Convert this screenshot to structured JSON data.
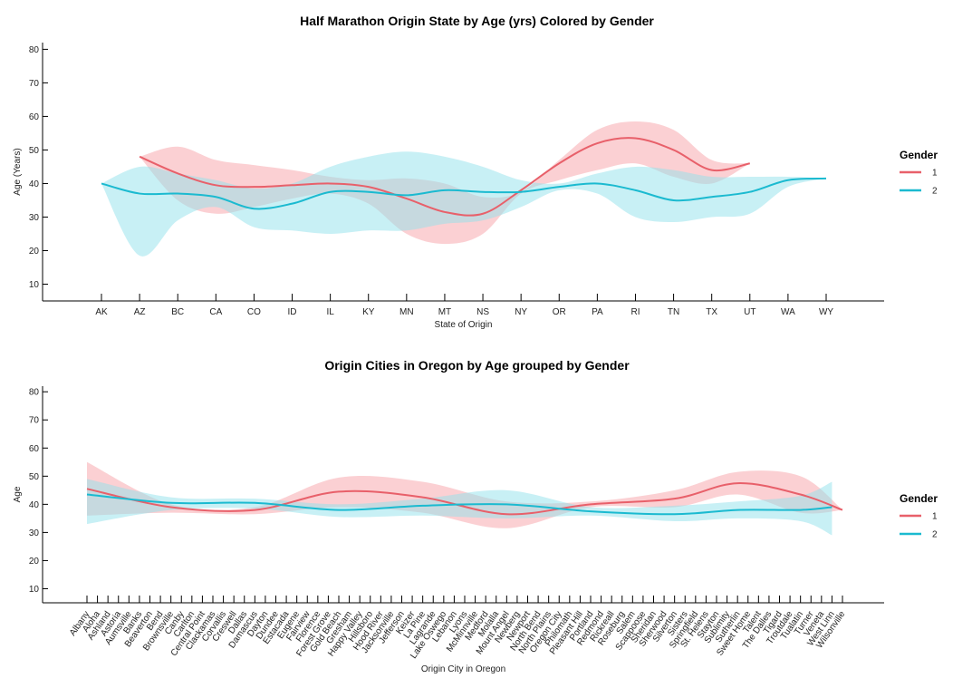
{
  "charts": [
    {
      "type": "line",
      "title": "Half Marathon Origin State by Age (yrs) Colored by Gender",
      "xlabel": "State of Origin",
      "ylabel": "Age (Years)",
      "ylim": [
        5,
        82
      ],
      "yticks": [
        10,
        20,
        30,
        40,
        50,
        60,
        70,
        80
      ],
      "categories": [
        "AK",
        "AZ",
        "BC",
        "CA",
        "CO",
        "ID",
        "IL",
        "KY",
        "MN",
        "MT",
        "NS",
        "NY",
        "OR",
        "PA",
        "RI",
        "TN",
        "TX",
        "UT",
        "WA",
        "WY"
      ],
      "legend": {
        "title": "Gender",
        "position": "right"
      },
      "series": [
        {
          "name": "1",
          "color": "#e8606a",
          "band_color": "#f7a1a8",
          "x_start": 1,
          "values": [
            48,
            43,
            39.5,
            39,
            39.5,
            40,
            39,
            35.5,
            31.5,
            31,
            38,
            46,
            52,
            53.5,
            50,
            44,
            46
          ],
          "upper": [
            48,
            51,
            47,
            45.5,
            44,
            42,
            41,
            41.5,
            40,
            36,
            37.5,
            47,
            56,
            58.5,
            56,
            47,
            46
          ],
          "lower": [
            48,
            35,
            31,
            33,
            35.5,
            37,
            34,
            25,
            22,
            25,
            37,
            41,
            44,
            46,
            42,
            40,
            46
          ]
        },
        {
          "name": "2",
          "color": "#1bbad0",
          "band_color": "#92e1ec",
          "x_start": 0,
          "values": [
            40,
            37,
            37,
            36,
            32.5,
            34,
            37.5,
            37.5,
            36.5,
            38,
            37.5,
            37.5,
            39,
            40,
            38,
            35,
            36,
            37.5,
            41,
            41.5
          ],
          "upper": [
            40,
            45,
            43,
            41,
            38.5,
            40,
            45,
            48,
            49.5,
            48,
            45,
            41,
            40,
            43,
            45,
            44,
            42,
            42,
            42,
            41.5
          ],
          "lower": [
            40,
            18.5,
            29,
            33,
            27,
            26,
            25,
            26,
            26,
            28,
            29,
            33,
            38,
            37,
            30,
            28.5,
            30,
            31,
            39,
            41.5
          ]
        }
      ]
    },
    {
      "type": "line",
      "title": "Origin Cities in Oregon by Age grouped by Gender",
      "xlabel": "Origin City in Oregon",
      "ylabel": "Age",
      "ylim": [
        5,
        82
      ],
      "yticks": [
        10,
        20,
        30,
        40,
        50,
        60,
        70,
        80
      ],
      "categories": [
        "Albany",
        "Aloha",
        "Ashland",
        "Astoria",
        "Aumsville",
        "Banks",
        "Beaverton",
        "Bend",
        "Brownsville",
        "Canby",
        "Carlton",
        "Central Point",
        "Clackamas",
        "Corvallis",
        "Creswell",
        "Dallas",
        "Damascus",
        "Dayton",
        "Dundee",
        "Estacada",
        "Eugene",
        "Fairview",
        "Florence",
        "Forest Grove",
        "Gold Beach",
        "Gresham",
        "Happy Valley",
        "Hillsboro",
        "Hood River",
        "Jacksonville",
        "Jefferson",
        "Keizer",
        "La Pine",
        "Lagrande",
        "Lake Oswego",
        "Lebanon",
        "Lyons",
        "McMinnville",
        "Medford",
        "Molalla",
        "Mount Angel",
        "Newberg",
        "Newport",
        "North Bend",
        "North Plains",
        "Oregon City",
        "Philomath",
        "Pleasant Hill",
        "Portland",
        "Redmond",
        "Rickreall",
        "Roseburg",
        "Salem",
        "Scappoose",
        "Sheridan",
        "Sherwood",
        "Silverton",
        "Sisters",
        "Springfield",
        "St. Helens",
        "Stayton",
        "Sublimity",
        "Sutherlin",
        "Sweet Home",
        "Talent",
        "The Dalles",
        "Tigard",
        "Troutdale",
        "Tualatin",
        "Turner",
        "Veneta",
        "West Linn",
        "Wilsonville"
      ],
      "legend": {
        "title": "Gender",
        "position": "right"
      },
      "series": [
        {
          "name": "1",
          "color": "#e8606a",
          "band_color": "#f7a1a8",
          "x_indices": [
            0,
            8,
            16,
            24,
            32,
            40,
            48,
            56,
            62,
            68,
            72
          ],
          "values": [
            45.5,
            39,
            38,
            44.5,
            42.5,
            36.5,
            40,
            42,
            47.5,
            43.5,
            38
          ],
          "upper": [
            55,
            40,
            39,
            49.5,
            48,
            41,
            41,
            45,
            51.5,
            50,
            38
          ],
          "lower": [
            36,
            37,
            36.5,
            39,
            37,
            31.5,
            39,
            39,
            43.5,
            37,
            38
          ]
        },
        {
          "name": "2",
          "color": "#1bbad0",
          "band_color": "#92e1ec",
          "x_indices": [
            0,
            8,
            16,
            24,
            32,
            40,
            48,
            56,
            62,
            68,
            71
          ],
          "values": [
            43.5,
            40.5,
            40.5,
            38,
            39.5,
            40,
            37.5,
            36.5,
            38,
            38,
            39
          ],
          "upper": [
            49,
            42.5,
            42,
            40,
            42,
            45,
            39,
            39.5,
            41,
            43,
            48
          ],
          "lower": [
            33,
            38,
            38.5,
            35.5,
            36,
            35,
            36,
            34,
            35,
            34,
            29
          ]
        }
      ]
    }
  ]
}
